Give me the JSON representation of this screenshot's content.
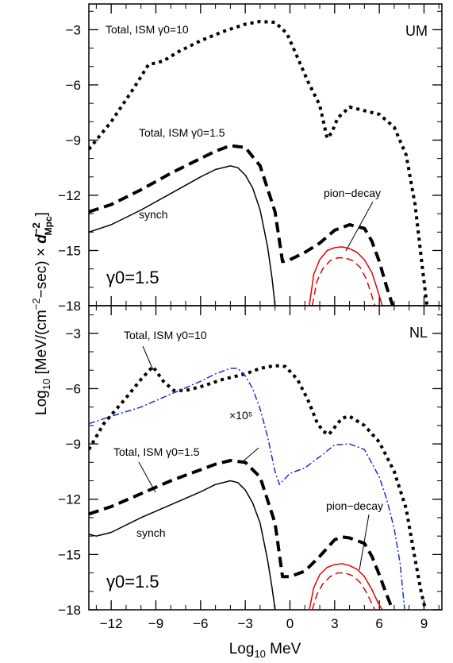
{
  "chart_data": {
    "type": "line",
    "xlabel": "Log10 MeV",
    "ylabel": "Log10 [MeV/(cm−2−sec) × d−2Mpc]",
    "xlim": [
      -13.5,
      10.2
    ],
    "x_ticks": [
      -12,
      -9,
      -6,
      -3,
      0,
      3,
      6,
      9
    ],
    "panels": [
      {
        "name": "UM",
        "ylim": [
          -18,
          -1.6
        ],
        "y_ticks": [
          -18,
          -15,
          -12,
          -9,
          -6,
          -3
        ],
        "gamma_label": "γ0=1.5",
        "annotations": {
          "total10": "Total, ISM γ0=10",
          "total15": "Total, ISM γ0=1.5",
          "synch": "synch",
          "pion": "pion−decay"
        },
        "series": [
          {
            "key": "total_gamma10",
            "color": "#000000",
            "style": "dotted",
            "width": 4,
            "x": [
              -13.5,
              -12,
              -10.5,
              -9.5,
              -8.5,
              -7.5,
              -6,
              -4.5,
              -3,
              -2,
              -1,
              -0.2,
              0.5,
              1.2,
              2,
              2.5,
              2.8,
              3.2,
              4,
              5,
              6,
              7,
              7.8,
              8.4,
              8.9,
              9.2
            ],
            "y": [
              -9.5,
              -8.0,
              -6.2,
              -4.9,
              -4.7,
              -4.2,
              -3.6,
              -3.1,
              -2.7,
              -2.55,
              -2.6,
              -3.2,
              -4.5,
              -5.8,
              -7.1,
              -8.9,
              -8.6,
              -7.8,
              -7.2,
              -7.4,
              -7.6,
              -8.3,
              -9.8,
              -12.5,
              -16,
              -18
            ]
          },
          {
            "key": "total_gamma1_5",
            "color": "#000000",
            "style": "dashed",
            "width": 4,
            "x": [
              -13.5,
              -12,
              -10,
              -8,
              -6,
              -5,
              -4,
              -3,
              -2,
              -1,
              -0.5,
              0,
              1,
              2,
              3,
              4,
              5,
              5.5,
              6,
              6.5,
              6.9
            ],
            "y": [
              -12.9,
              -12.5,
              -11.7,
              -10.8,
              -10.0,
              -9.6,
              -9.3,
              -9.4,
              -10.4,
              -12.9,
              -15.6,
              -15.5,
              -15.1,
              -14.6,
              -13.9,
              -13.6,
              -13.8,
              -14.5,
              -15.6,
              -17,
              -18
            ]
          },
          {
            "key": "synch",
            "color": "#000000",
            "style": "solid",
            "width": 1.5,
            "x": [
              -13.5,
              -12,
              -10,
              -8,
              -6,
              -5,
              -4,
              -3.5,
              -3,
              -2.5,
              -2,
              -1.5,
              -1.2,
              -1.0
            ],
            "y": [
              -14.0,
              -13.6,
              -12.8,
              -11.9,
              -11.0,
              -10.6,
              -10.4,
              -10.5,
              -10.9,
              -11.6,
              -12.8,
              -14.8,
              -16.5,
              -18
            ]
          },
          {
            "key": "pion_decay",
            "color": "#e60000",
            "style": "solid",
            "width": 1.5,
            "x": [
              1.3,
              1.6,
              2,
              2.5,
              3,
              3.5,
              4,
              4.5,
              5,
              5.5,
              5.9,
              6.2
            ],
            "y": [
              -18,
              -16.3,
              -15.5,
              -15.0,
              -14.85,
              -14.8,
              -14.9,
              -15.1,
              -15.5,
              -16.2,
              -17.2,
              -18
            ]
          },
          {
            "key": "pion_decay_2",
            "color": "#e60000",
            "style": "dashed",
            "width": 1.5,
            "x": [
              1.5,
              1.8,
              2.2,
              2.7,
              3.2,
              3.7,
              4.2,
              4.7,
              5.1,
              5.4,
              5.7
            ],
            "y": [
              -18,
              -16.7,
              -16.0,
              -15.55,
              -15.4,
              -15.4,
              -15.55,
              -15.9,
              -16.5,
              -17.2,
              -18
            ]
          }
        ]
      },
      {
        "name": "NL",
        "ylim": [
          -18,
          -1.5
        ],
        "y_ticks": [
          -18,
          -15,
          -12,
          -9,
          -6,
          -3
        ],
        "gamma_label": "γ0=1.5",
        "annotations": {
          "total10": "Total, ISM γ0=10",
          "total15": "Total, ISM γ0=1.5",
          "synch": "synch",
          "pion": "pion−decay",
          "scale": "×10⁵"
        },
        "series": [
          {
            "key": "total_gamma10",
            "color": "#000000",
            "style": "dotted",
            "width": 4,
            "x": [
              -13.5,
              -12.5,
              -11,
              -10,
              -9.2,
              -8.5,
              -7.8,
              -7,
              -6,
              -4.5,
              -3,
              -2,
              -1,
              -0.3,
              0.5,
              1.2,
              1.8,
              2.2,
              2.6,
              3,
              3.5,
              4,
              5,
              6,
              7,
              7.8,
              8.3,
              8.8,
              9.1
            ],
            "y": [
              -9.3,
              -7.9,
              -6.5,
              -5.5,
              -4.8,
              -5.6,
              -6.1,
              -6.1,
              -5.9,
              -5.5,
              -5.2,
              -4.9,
              -4.75,
              -4.8,
              -5.5,
              -6.6,
              -7.8,
              -8.3,
              -8.5,
              -8.1,
              -7.6,
              -7.5,
              -8.0,
              -8.9,
              -10.5,
              -12.5,
              -14.8,
              -17,
              -18
            ]
          },
          {
            "key": "total_gamma1_5",
            "color": "#000000",
            "style": "dashed",
            "width": 4,
            "x": [
              -13.5,
              -12,
              -10,
              -8,
              -6,
              -5,
              -4,
              -3,
              -2,
              -1,
              -0.5,
              0,
              1,
              2,
              3,
              3.5,
              4,
              5,
              5.5,
              6,
              6.5,
              6.9
            ],
            "y": [
              -12.8,
              -12.4,
              -11.7,
              -11.0,
              -10.4,
              -10.1,
              -9.9,
              -10.0,
              -10.8,
              -13.3,
              -16.2,
              -16.2,
              -15.9,
              -15.1,
              -14.2,
              -14.05,
              -14.1,
              -14.4,
              -15.1,
              -16.1,
              -17.2,
              -18
            ]
          },
          {
            "key": "synch",
            "color": "#000000",
            "style": "solid",
            "width": 1.5,
            "x": [
              -13.5,
              -13,
              -12,
              -10,
              -8,
              -6,
              -5,
              -4,
              -3.5,
              -3,
              -2.5,
              -2,
              -1.5,
              -1.2,
              -1.0
            ],
            "y": [
              -13.9,
              -14.0,
              -13.8,
              -13.0,
              -12.3,
              -11.6,
              -11.2,
              -11.0,
              -11.1,
              -11.5,
              -12.2,
              -13.3,
              -15.3,
              -16.8,
              -18
            ]
          },
          {
            "key": "scaled_x1e5",
            "color": "#1f2fd0",
            "style": "dashdot",
            "width": 1.5,
            "x": [
              -13.5,
              -12,
              -10,
              -8,
              -6,
              -5,
              -4,
              -3.5,
              -3,
              -2.5,
              -2,
              -1.5,
              -1,
              -0.7,
              0,
              1,
              2,
              3,
              4,
              5,
              6,
              6.5,
              7,
              7.4,
              7.7
            ],
            "y": [
              -7.9,
              -7.5,
              -7.0,
              -6.3,
              -5.6,
              -5.2,
              -4.9,
              -4.9,
              -5.3,
              -6.0,
              -7.1,
              -8.6,
              -10.5,
              -11.2,
              -10.6,
              -10.3,
              -9.7,
              -9.05,
              -9.0,
              -9.3,
              -10.8,
              -12.0,
              -13.6,
              -15.5,
              -18
            ]
          },
          {
            "key": "pion_decay",
            "color": "#e60000",
            "style": "solid",
            "width": 1.5,
            "x": [
              1.3,
              1.6,
              2,
              2.5,
              3,
              3.5,
              4,
              4.5,
              5,
              5.5,
              5.9,
              6.2
            ],
            "y": [
              -18,
              -16.8,
              -16.1,
              -15.7,
              -15.55,
              -15.5,
              -15.6,
              -15.8,
              -16.2,
              -16.9,
              -17.6,
              -18
            ]
          },
          {
            "key": "pion_decay_2",
            "color": "#e60000",
            "style": "dashed",
            "width": 1.5,
            "x": [
              1.5,
              1.8,
              2.2,
              2.7,
              3.2,
              3.7,
              4.2,
              4.7,
              5.1,
              5.4,
              5.7
            ],
            "y": [
              -18,
              -17.2,
              -16.6,
              -16.2,
              -16.0,
              -16.0,
              -16.15,
              -16.5,
              -17.0,
              -17.5,
              -18
            ]
          }
        ]
      }
    ]
  }
}
